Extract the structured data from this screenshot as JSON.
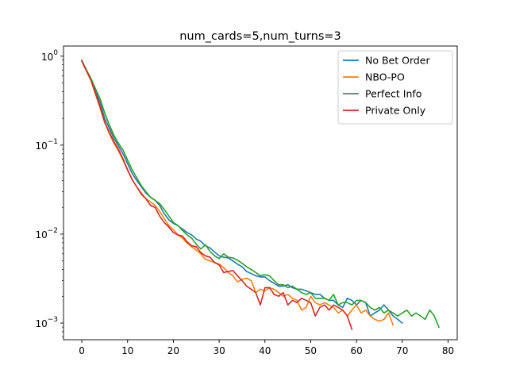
{
  "chart_data": {
    "type": "line",
    "title": "num_cards=5,num_turns=3",
    "xlabel": "",
    "ylabel": "",
    "yscale": "log",
    "xlim": [
      -4,
      82
    ],
    "ylim": [
      0.00065,
      1.3
    ],
    "xticks": [
      0,
      10,
      20,
      30,
      40,
      50,
      60,
      70,
      80
    ],
    "yticks": [
      {
        "value": 1,
        "base": "10",
        "exp": "0"
      },
      {
        "value": 0.1,
        "base": "10",
        "exp": "−1"
      },
      {
        "value": 0.01,
        "base": "10",
        "exp": "−2"
      },
      {
        "value": 0.001,
        "base": "10",
        "exp": "−3"
      }
    ],
    "grid": false,
    "legend_position": "top-right",
    "series": [
      {
        "name": "No Bet Order",
        "color": "#1f77b4",
        "x": [
          0,
          1,
          2,
          3,
          4,
          5,
          6,
          7,
          8,
          9,
          10,
          11,
          12,
          13,
          14,
          15,
          16,
          17,
          18,
          19,
          20,
          21,
          22,
          23,
          24,
          25,
          26,
          27,
          28,
          29,
          30,
          31,
          32,
          33,
          34,
          35,
          36,
          37,
          38,
          39,
          40,
          41,
          42,
          43,
          44,
          45,
          46,
          47,
          48,
          49,
          50,
          51,
          52,
          53,
          54,
          55,
          56,
          57,
          58,
          59,
          60,
          61,
          62,
          63,
          64,
          65,
          66,
          67,
          68,
          69,
          70
        ],
        "y": [
          0.88,
          0.7,
          0.55,
          0.4,
          0.3,
          0.2,
          0.155,
          0.12,
          0.098,
          0.08,
          0.062,
          0.048,
          0.04,
          0.034,
          0.029,
          0.026,
          0.024,
          0.021,
          0.017,
          0.0145,
          0.0132,
          0.0124,
          0.0114,
          0.0104,
          0.0098,
          0.0088,
          0.0083,
          0.0074,
          0.007,
          0.0063,
          0.0057,
          0.0055,
          0.0054,
          0.005,
          0.0046,
          0.0043,
          0.0038,
          0.0036,
          0.0034,
          0.0033,
          0.0033,
          0.003,
          0.0028,
          0.0026,
          0.0026,
          0.0027,
          0.0025,
          0.0024,
          0.0024,
          0.0023,
          0.0022,
          0.0021,
          0.0021,
          0.0019,
          0.0018,
          0.0018,
          0.0016,
          0.0015,
          0.0019,
          0.0018,
          0.0016,
          0.0018,
          0.0017,
          0.0012,
          0.0013,
          0.0014,
          0.0016,
          0.0014,
          0.0012,
          0.0011,
          0.001
        ]
      },
      {
        "name": "NBO-PO",
        "color": "#ff7f0e",
        "x": [
          0,
          1,
          2,
          3,
          4,
          5,
          6,
          7,
          8,
          9,
          10,
          11,
          12,
          13,
          14,
          15,
          16,
          17,
          18,
          19,
          20,
          21,
          22,
          23,
          24,
          25,
          26,
          27,
          28,
          29,
          30,
          31,
          32,
          33,
          34,
          35,
          36,
          37,
          38,
          39,
          40,
          41,
          42,
          43,
          44,
          45,
          46,
          47,
          48,
          49,
          50,
          51,
          52,
          53,
          54,
          55,
          56,
          57,
          58,
          59,
          60,
          61,
          62,
          63,
          64,
          65,
          66,
          67,
          68
        ],
        "y": [
          0.88,
          0.68,
          0.53,
          0.37,
          0.26,
          0.18,
          0.135,
          0.105,
          0.086,
          0.068,
          0.052,
          0.041,
          0.034,
          0.029,
          0.025,
          0.023,
          0.021,
          0.018,
          0.015,
          0.0125,
          0.0112,
          0.0098,
          0.009,
          0.0079,
          0.0072,
          0.0066,
          0.006,
          0.0052,
          0.005,
          0.0048,
          0.0046,
          0.0042,
          0.0037,
          0.0034,
          0.0029,
          0.0031,
          0.0032,
          0.003,
          0.0022,
          0.0024,
          0.0023,
          0.0025,
          0.0024,
          0.0022,
          0.002,
          0.0021,
          0.0019,
          0.0018,
          0.0014,
          0.0015,
          0.002,
          0.0017,
          0.0016,
          0.0017,
          0.0016,
          0.0015,
          0.0013,
          0.0014,
          0.0012,
          0.0014,
          0.0016,
          0.0013,
          0.0014,
          0.0012,
          0.0011,
          0.00105,
          0.0011,
          0.0013,
          0.00095
        ]
      },
      {
        "name": "Perfect Info",
        "color": "#2ca02c",
        "x": [
          0,
          1,
          2,
          3,
          4,
          5,
          6,
          7,
          8,
          9,
          10,
          11,
          12,
          13,
          14,
          15,
          16,
          17,
          18,
          19,
          20,
          21,
          22,
          23,
          24,
          25,
          26,
          27,
          28,
          29,
          30,
          31,
          32,
          33,
          34,
          35,
          36,
          37,
          38,
          39,
          40,
          41,
          42,
          43,
          44,
          45,
          46,
          47,
          48,
          49,
          50,
          51,
          52,
          53,
          54,
          55,
          56,
          57,
          58,
          59,
          60,
          61,
          62,
          63,
          64,
          65,
          66,
          67,
          68,
          69,
          70,
          71,
          72,
          73,
          74,
          75,
          76,
          77,
          78
        ],
        "y": [
          0.9,
          0.7,
          0.56,
          0.43,
          0.33,
          0.23,
          0.17,
          0.13,
          0.105,
          0.088,
          0.068,
          0.053,
          0.043,
          0.035,
          0.03,
          0.026,
          0.024,
          0.022,
          0.019,
          0.016,
          0.0135,
          0.0125,
          0.011,
          0.0098,
          0.009,
          0.0077,
          0.0068,
          0.0076,
          0.0064,
          0.0057,
          0.0053,
          0.006,
          0.0055,
          0.0054,
          0.0051,
          0.0047,
          0.0043,
          0.004,
          0.0037,
          0.0034,
          0.0035,
          0.0034,
          0.003,
          0.0027,
          0.0027,
          0.0025,
          0.0026,
          0.0024,
          0.0022,
          0.0021,
          0.0022,
          0.0019,
          0.0019,
          0.0019,
          0.0018,
          0.0021,
          0.0016,
          0.0017,
          0.0017,
          0.0016,
          0.0018,
          0.0018,
          0.0017,
          0.0015,
          0.0014,
          0.0015,
          0.0013,
          0.0014,
          0.0013,
          0.0012,
          0.0013,
          0.0014,
          0.0012,
          0.0013,
          0.0012,
          0.0011,
          0.0014,
          0.0012,
          0.0009
        ]
      },
      {
        "name": "Private Only",
        "color": "#d62728",
        "x": [
          0,
          1,
          2,
          3,
          4,
          5,
          6,
          7,
          8,
          9,
          10,
          11,
          12,
          13,
          14,
          15,
          16,
          17,
          18,
          19,
          20,
          21,
          22,
          23,
          24,
          25,
          26,
          27,
          28,
          29,
          30,
          31,
          32,
          33,
          34,
          35,
          36,
          37,
          38,
          39,
          40,
          41,
          42,
          43,
          44,
          45,
          46,
          47,
          48,
          49,
          50,
          51,
          52,
          53,
          54,
          55,
          56,
          57,
          58,
          59
        ],
        "y": [
          0.88,
          0.69,
          0.54,
          0.38,
          0.27,
          0.18,
          0.14,
          0.11,
          0.09,
          0.07,
          0.053,
          0.041,
          0.034,
          0.028,
          0.025,
          0.021,
          0.02,
          0.016,
          0.0135,
          0.012,
          0.0104,
          0.0098,
          0.0095,
          0.0082,
          0.0074,
          0.0072,
          0.0062,
          0.0057,
          0.0055,
          0.0048,
          0.0045,
          0.0037,
          0.0038,
          0.0039,
          0.0034,
          0.003,
          0.0026,
          0.0024,
          0.0022,
          0.0016,
          0.0025,
          0.0025,
          0.0021,
          0.002,
          0.0022,
          0.0016,
          0.0018,
          0.0017,
          0.0019,
          0.0018,
          0.0017,
          0.0012,
          0.0015,
          0.0016,
          0.0014,
          0.0016,
          0.0015,
          0.0014,
          0.0012,
          0.00085
        ]
      }
    ]
  }
}
